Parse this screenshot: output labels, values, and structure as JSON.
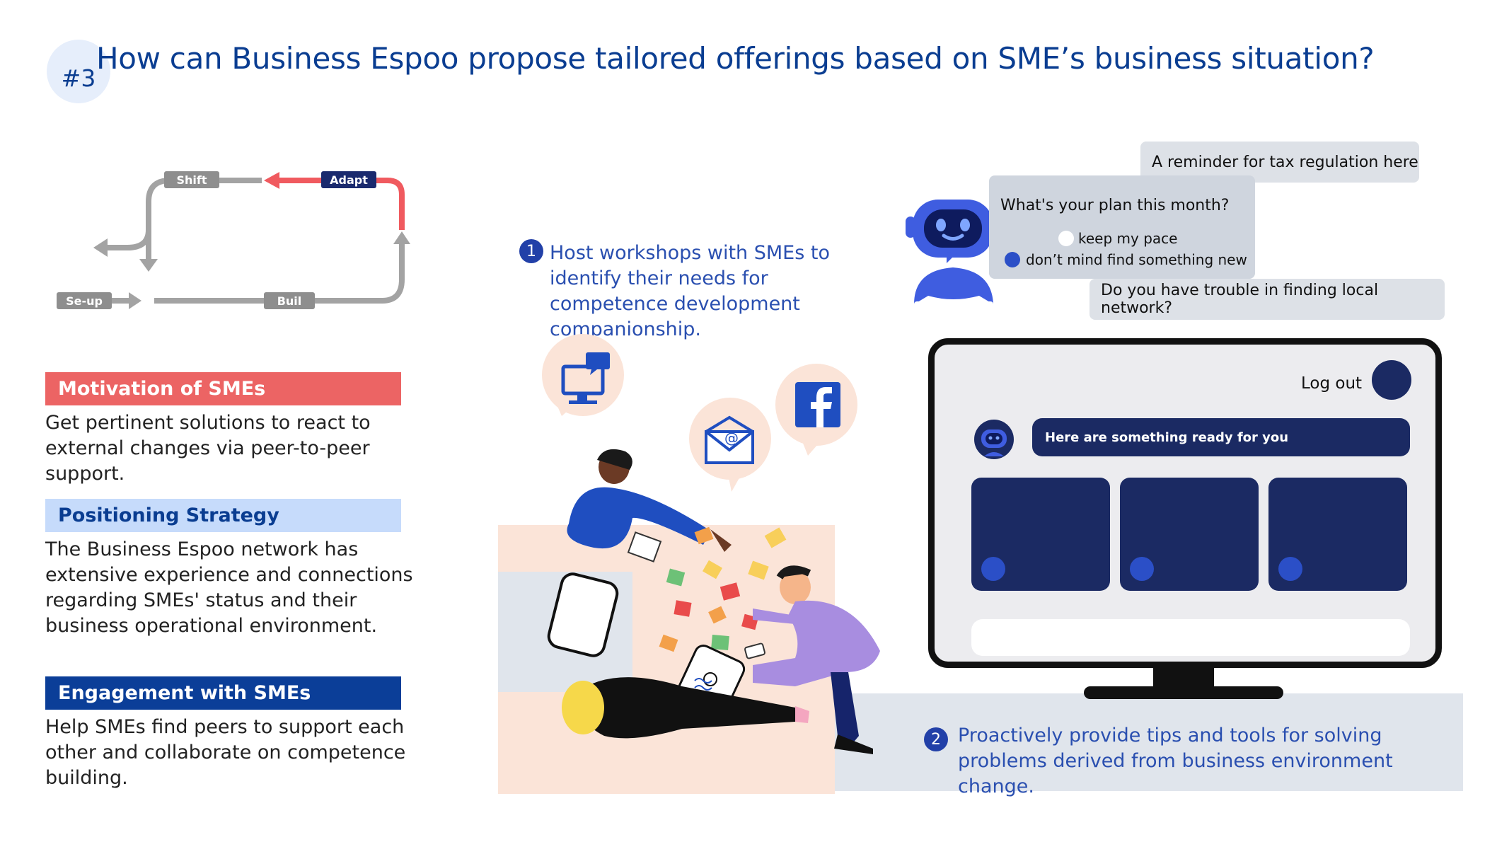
{
  "header": {
    "badge": "#3",
    "title": "How can Business Espoo propose tailored offerings based on SME’s business situation?"
  },
  "flow": {
    "labels": {
      "shift": "Shift",
      "adapt": "Adapt",
      "setup": "Se-up",
      "build": "Buil"
    },
    "colors": {
      "gray": "#8e8e8e",
      "red": "#f05a5f",
      "navy": "#1a2a6e"
    }
  },
  "sections": [
    {
      "heading": "Motivation of SMEs",
      "body": "Get pertinent solutions to react to external changes via peer-to-peer support.",
      "color": "#ec6464"
    },
    {
      "heading": "Positioning Strategy",
      "body": "The Business Espoo network has extensive experience and connections regarding SMEs' status and their business operational environment.",
      "color": "#c6dbfb"
    },
    {
      "heading": "Engagement with SMEs",
      "body": "Help SMEs find peers to support each other and collaborate on competence building.",
      "color": "#0b3e98"
    }
  ],
  "steps": [
    {
      "num": "1",
      "text": "Host workshops with SMEs to identify their needs for competence development companionship."
    },
    {
      "num": "2",
      "text": "Proactively provide tips and tools for solving problems derived from business environment change."
    }
  ],
  "chat": {
    "reminder": "A reminder for tax regulation here",
    "question": "What's your plan this month?",
    "option1": "keep my pace",
    "option2": "don’t mind find something new",
    "network": "Do you have trouble in finding local network?"
  },
  "screen": {
    "logout": "Log out",
    "message": "Here are something ready for you"
  },
  "icons": [
    "computer-chat-icon",
    "email-icon",
    "facebook-icon",
    "robot-icon"
  ]
}
